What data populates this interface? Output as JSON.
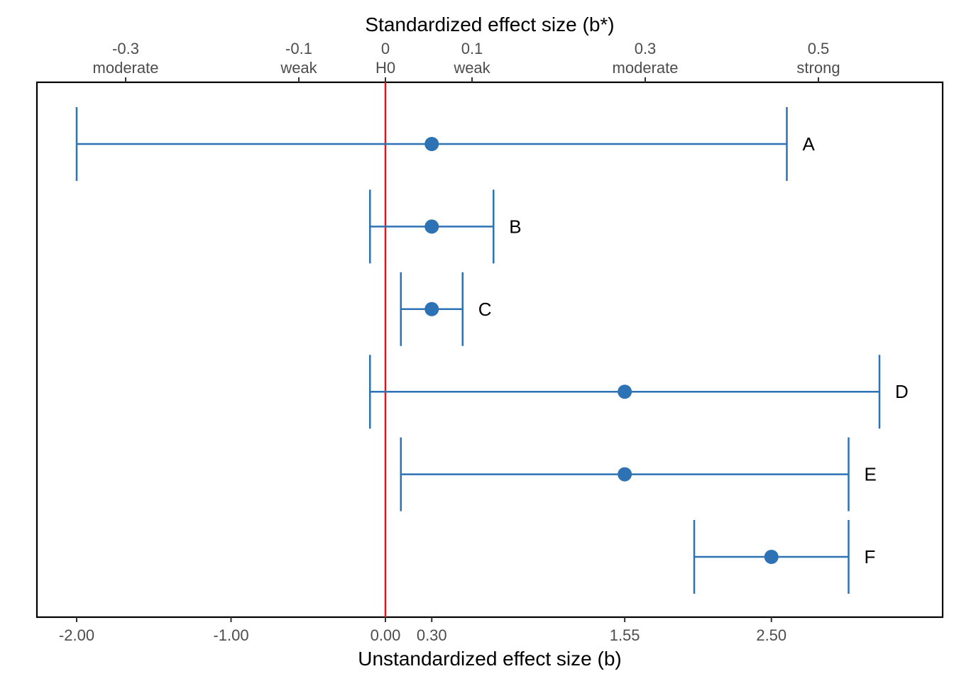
{
  "chart_data": {
    "type": "errorbar",
    "title": "",
    "xlabel": "Unstandardized effect size (b)",
    "x2label": "Standardized effect size (b*)",
    "xlim": [
      -2.3,
      3.55
    ],
    "x_ticks": [
      {
        "value": -2.0,
        "label": "-2.00"
      },
      {
        "value": -1.0,
        "label": "-1.00"
      },
      {
        "value": 0.0,
        "label": "0.00"
      },
      {
        "value": 0.3,
        "label": "0.30"
      },
      {
        "value": 1.55,
        "label": "1.55"
      },
      {
        "value": 2.5,
        "label": "2.50"
      }
    ],
    "x2_ticks": [
      {
        "value": -0.3,
        "label": "-0.3",
        "sublabel": "moderate"
      },
      {
        "value": -0.1,
        "label": "-0.1",
        "sublabel": "weak"
      },
      {
        "value": 0,
        "label": "0",
        "sublabel": "H0"
      },
      {
        "value": 0.1,
        "label": "0.1",
        "sublabel": "weak"
      },
      {
        "value": 0.3,
        "label": "0.3",
        "sublabel": "moderate"
      },
      {
        "value": 0.5,
        "label": "0.5",
        "sublabel": "strong"
      }
    ],
    "reference_line": {
      "x": 0,
      "color": "#d7191c"
    },
    "series_color": "#2c72b4",
    "rows": [
      {
        "label": "A",
        "estimate": 0.3,
        "lower": -2.0,
        "upper": 2.6
      },
      {
        "label": "B",
        "estimate": 0.3,
        "lower": -0.1,
        "upper": 0.7
      },
      {
        "label": "C",
        "estimate": 0.3,
        "lower": 0.1,
        "upper": 0.5
      },
      {
        "label": "D",
        "estimate": 1.55,
        "lower": -0.1,
        "upper": 3.2
      },
      {
        "label": "E",
        "estimate": 1.55,
        "lower": 0.1,
        "upper": 3.0
      },
      {
        "label": "F",
        "estimate": 2.5,
        "lower": 2.0,
        "upper": 3.0
      }
    ],
    "grid": false,
    "legend": "none"
  }
}
